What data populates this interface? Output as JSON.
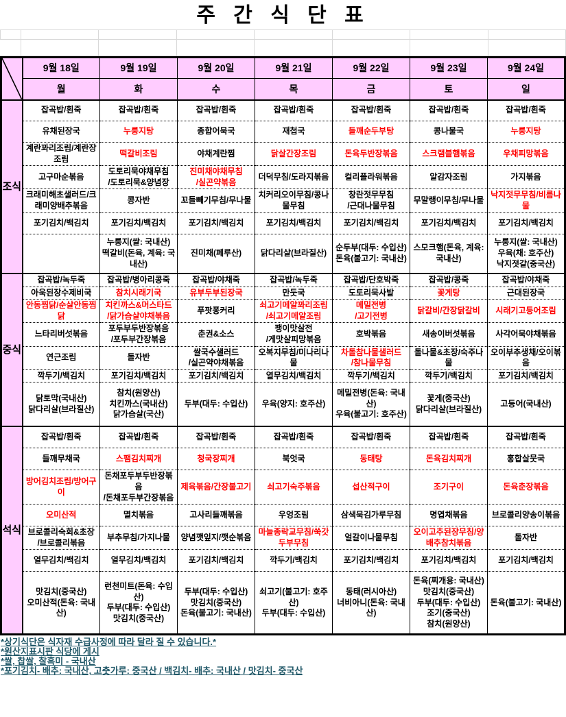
{
  "title": "주 간 식 단 표",
  "colors": {
    "header_bg": "#FFCCFF",
    "red_text": "#FF0000",
    "note_text": "#215868",
    "gridline": "#d9d9d9"
  },
  "columns": [
    {
      "date": "9월 18일",
      "day": "월"
    },
    {
      "date": "9월 19일",
      "day": "화"
    },
    {
      "date": "9월 20일",
      "day": "수"
    },
    {
      "date": "9월 21일",
      "day": "목"
    },
    {
      "date": "9월 22일",
      "day": "금"
    },
    {
      "date": "9월 23일",
      "day": "토"
    },
    {
      "date": "9월 24일",
      "day": "일"
    }
  ],
  "sections": [
    {
      "name": "조식",
      "rows": [
        [
          "잡곡밥/흰죽",
          "잡곡밥/흰죽",
          "잡곡밥/흰죽",
          "잡곡밥/흰죽",
          "잡곡밥/흰죽",
          "잡곡밥/흰죽",
          "잡곡밥/흰죽"
        ],
        [
          "유채된장국",
          {
            "t": "누룽지탕",
            "red": true
          },
          "종합어묵국",
          "재첩국",
          {
            "t": "들깨순두부탕",
            "red": true
          },
          "콩나물국",
          {
            "t": "누룽지탕",
            "red": true
          }
        ],
        [
          "계란꽈리조림/계란장조림",
          {
            "t": "떡갈비조림",
            "red": true
          },
          "야채계란찜",
          {
            "t": "닭살간장조림",
            "red": true
          },
          {
            "t": "돈육두반장볶음",
            "red": true
          },
          {
            "t": "스크램블햄볶음",
            "red": true
          },
          {
            "t": "우채피망볶음",
            "red": true
          }
        ],
        [
          "고구마순볶음",
          "도토리묵야채무침\n/도토리묵&양념장",
          {
            "t": "진미채야채무침\n/실곤약볶음",
            "red": true
          },
          "더덕무침/도라지볶음",
          "컬리플라워볶음",
          "알감자조림",
          "가지볶음"
        ],
        [
          "크래미해초샐러드/크래미양배추볶음",
          "콩자반",
          "꼬들빼기무침/무나물",
          "치커리오이무침/콩나물무침",
          "창란젓무무침\n/근대나물무침",
          "무말랭이무침/무나물",
          {
            "t": "낙지젓무무침/비름나물",
            "red": true
          }
        ],
        [
          "포기김치/백김치",
          "포기김치/백김치",
          "포기김치/백김치",
          "포기김치/백김치",
          "포기김치/백김치",
          "포기김치/백김치",
          "포기김치/백김치"
        ],
        [
          "",
          "누룽지(쌀: 국내산)\n떡갈비(돈육, 계육: 국내산)",
          "진미채(페루산)",
          "닭다리살(브라질산)",
          "순두부(대두: 수입산)\n돈육(불고기: 국내산)",
          "스모크햄(돈육, 계육: 국내산)",
          "누룽지(쌀: 국내산)\n우육(채: 호주산)\n낙지젓갈(중국산)"
        ]
      ]
    },
    {
      "name": "중식",
      "rows": [
        [
          "잡곡밥/녹두죽",
          "잡곡밥/병아리콩죽",
          "잡곡밥/야채죽",
          "잡곡밥/녹두죽",
          "잡곡밥/단호박죽",
          "잡곡밥/콩죽",
          "잡곡밥/야채죽"
        ],
        [
          "아욱된장수제비국",
          {
            "t": "참치시래기국",
            "red": true
          },
          {
            "t": "유부두부된장국",
            "red": true
          },
          "만둣국",
          "도토리묵사발",
          {
            "t": "꽃게탕",
            "red": true
          },
          "근대된장국"
        ],
        [
          {
            "t": "안동찜닭/순살안동찜닭",
            "red": true
          },
          {
            "t": "치킨까스&머스타드\n/닭가슴살야채볶음",
            "red": true
          },
          "푸팟퐁커리",
          {
            "t": "쇠고기메알꽈리조림\n/쇠고기메알조림",
            "red": true
          },
          {
            "t": "메밀전병\n/고기전병",
            "red": true
          },
          {
            "t": "닭갈비/간장닭갈비",
            "red": true
          },
          {
            "t": "시래기고등어조림",
            "red": true
          }
        ],
        [
          "느타리버섯볶음",
          "포두부두반장볶음\n/포두부간장볶음",
          "춘권&소스",
          "팽이맛살전\n/게맛살피망볶음",
          "호박볶음",
          "새송이버섯볶음",
          "사각어묵야채볶음"
        ],
        [
          "연근조림",
          "돌자반",
          "쌀국수샐러드\n/실곤약야채볶음",
          "오복지무침/미나리나물",
          {
            "t": "차돌참나물샐러드\n/참나물무침",
            "red": true
          },
          "돌나물&초장/숙주나물",
          "오이부추생채/오이볶음"
        ],
        [
          "깍두기/백김치",
          "포기김치/백김치",
          "포기김치/백김치",
          "열무김치/백김치",
          "깍두기/백김치",
          "깍두기/백김치",
          "포기김치/백김치"
        ],
        [
          "닭토막(국내산)\n닭다리살(브라질산)",
          "참치(원양산)\n치킨까스(국내산)\n닭가슴살(국산)",
          "두부(대두: 수입산)",
          "우육(양지: 호주산)",
          "메밀전병(돈육: 국내산)\n우육(불고기: 호주산)",
          "꽃게(중국산)\n닭다리살(브라질산)",
          "고등어(국내산)"
        ]
      ]
    },
    {
      "name": "석식",
      "rows": [
        [
          "잡곡밥/흰죽",
          "잡곡밥/흰죽",
          "잡곡밥/흰죽",
          "잡곡밥/흰죽",
          "잡곡밥/흰죽",
          "잡곡밥/흰죽",
          "잡곡밥/흰죽"
        ],
        [
          "들깨무채국",
          {
            "t": "스팸김치찌개",
            "red": true
          },
          {
            "t": "청국장찌개",
            "red": true
          },
          "북엇국",
          {
            "t": "동태탕",
            "red": true
          },
          {
            "t": "돈육김치찌개",
            "red": true
          },
          "홍합살뭇국"
        ],
        [
          {
            "t": "방어김치조림/방어구이",
            "red": true
          },
          "돈채포두부두반장볶음\n/돈채포두부간장볶음",
          {
            "t": "제육볶음/간장불고기",
            "red": true
          },
          {
            "t": "쇠고기숙주볶음",
            "red": true
          },
          {
            "t": "섭산적구이",
            "red": true
          },
          {
            "t": "조기구이",
            "red": true
          },
          {
            "t": "돈육춘장볶음",
            "red": true
          }
        ],
        [
          {
            "t": "오미산적",
            "red": true
          },
          "멸치볶음",
          "고사리들깨볶음",
          "우엉조림",
          "삼색묵김가루무침",
          "명엽채볶음",
          "브로콜리양송이볶음"
        ],
        [
          "브로콜리숙회&초장\n/브로콜리볶음",
          "부추무침/가지나물",
          "양념깻잎지/깻순볶음",
          {
            "t": "마늘종락교무침/쑥갓두부무침",
            "red": true
          },
          "얼갈이나물무침",
          {
            "t": "오이고추된장무침/양배추참치볶음",
            "red": true
          },
          "돌자반"
        ],
        [
          "열무김치/백김치",
          "열무김치/백김치",
          "포기김치/백김치",
          "깍두기/백김치",
          "포기김치/백김치",
          "포기김치/백김치",
          "포기김치/백김치"
        ],
        [
          "맛김치(중국산)\n오미산적(돈육: 국내산)",
          "런천미트(돈육: 수입산)\n두부(대두: 수입산)\n맛김치(중국산)",
          "두부(대두: 수입산)\n맛김치(중국산)\n돈육(불고기: 국내산)",
          "쇠고기(불고기: 호주산)\n두부(대두: 수입산)",
          "동태(러시아산)\n너비아니(돈육: 국내산)",
          "돈육(찌개용: 국내산)\n맛김치(중국산)\n두부(대두: 수입산)\n조기(중국산)\n참치(원양산)",
          "돈육(불고기: 국내산)"
        ]
      ]
    }
  ],
  "notes": [
    "*상기식단은 식자재 수급사정에 따라 달라 질 수 있습니다.*",
    "*원산지표시판 식당에 게시",
    "*쌀, 찹쌀, 찰흑미 - 국내산",
    "*포기김치- 배추: 국내산, 고춧가루: 중국산 / 백김치- 배추: 국내산 / 맛김치- 중국산"
  ]
}
